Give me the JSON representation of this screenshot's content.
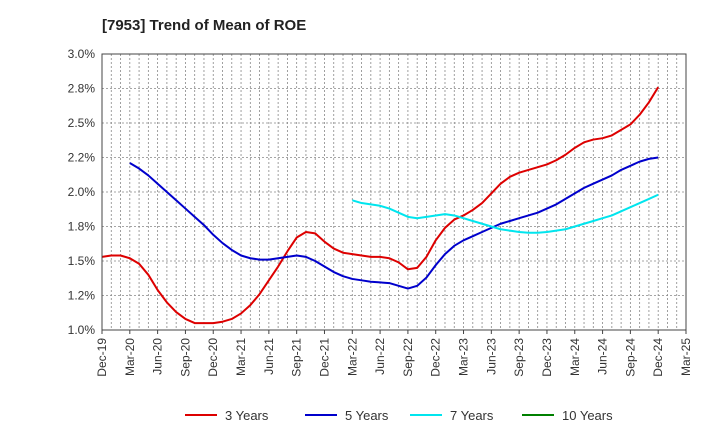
{
  "chart_data": {
    "type": "line",
    "title": "[7953]  Trend of Mean of ROE",
    "xlabel": "",
    "ylabel": "",
    "x_ticks": [
      "Dec-19",
      "Mar-20",
      "Jun-20",
      "Sep-20",
      "Dec-20",
      "Mar-21",
      "Jun-21",
      "Sep-21",
      "Dec-21",
      "Mar-22",
      "Jun-22",
      "Sep-22",
      "Dec-22",
      "Mar-23",
      "Jun-23",
      "Sep-23",
      "Dec-23",
      "Mar-24",
      "Jun-24",
      "Sep-24",
      "Dec-24",
      "Mar-25"
    ],
    "y_ticks": [
      "1.0%",
      "1.2%",
      "1.5%",
      "1.8%",
      "2.0%",
      "2.2%",
      "2.5%",
      "2.8%",
      "3.0%"
    ],
    "ylim": [
      1.0,
      3.0
    ],
    "grid": true,
    "legend_position": "bottom",
    "series": [
      {
        "name": "3 Years",
        "color": "#dd0000",
        "points": [
          [
            "Dec-19",
            1.53
          ],
          [
            "Jan-20",
            1.54
          ],
          [
            "Feb-20",
            1.54
          ],
          [
            "Mar-20",
            1.52
          ],
          [
            "Apr-20",
            1.48
          ],
          [
            "May-20",
            1.4
          ],
          [
            "Jun-20",
            1.29
          ],
          [
            "Jul-20",
            1.2
          ],
          [
            "Aug-20",
            1.13
          ],
          [
            "Sep-20",
            1.08
          ],
          [
            "Oct-20",
            1.05
          ],
          [
            "Nov-20",
            1.05
          ],
          [
            "Dec-20",
            1.05
          ],
          [
            "Jan-21",
            1.06
          ],
          [
            "Feb-21",
            1.08
          ],
          [
            "Mar-21",
            1.12
          ],
          [
            "Apr-21",
            1.18
          ],
          [
            "May-21",
            1.26
          ],
          [
            "Jun-21",
            1.36
          ],
          [
            "Jul-21",
            1.46
          ],
          [
            "Aug-21",
            1.57
          ],
          [
            "Sep-21",
            1.67
          ],
          [
            "Oct-21",
            1.71
          ],
          [
            "Nov-21",
            1.7
          ],
          [
            "Dec-21",
            1.64
          ],
          [
            "Jan-22",
            1.59
          ],
          [
            "Feb-22",
            1.56
          ],
          [
            "Mar-22",
            1.55
          ],
          [
            "Apr-22",
            1.54
          ],
          [
            "May-22",
            1.53
          ],
          [
            "Jun-22",
            1.53
          ],
          [
            "Jul-22",
            1.52
          ],
          [
            "Aug-22",
            1.49
          ],
          [
            "Sep-22",
            1.44
          ],
          [
            "Oct-22",
            1.45
          ],
          [
            "Nov-22",
            1.53
          ],
          [
            "Dec-22",
            1.65
          ],
          [
            "Jan-23",
            1.74
          ],
          [
            "Feb-23",
            1.8
          ],
          [
            "Mar-23",
            1.83
          ],
          [
            "Apr-23",
            1.87
          ],
          [
            "May-23",
            1.92
          ],
          [
            "Jun-23",
            1.99
          ],
          [
            "Jul-23",
            2.06
          ],
          [
            "Aug-23",
            2.11
          ],
          [
            "Sep-23",
            2.14
          ],
          [
            "Oct-23",
            2.16
          ],
          [
            "Nov-23",
            2.18
          ],
          [
            "Dec-23",
            2.2
          ],
          [
            "Jan-24",
            2.23
          ],
          [
            "Feb-24",
            2.27
          ],
          [
            "Mar-24",
            2.32
          ],
          [
            "Apr-24",
            2.36
          ],
          [
            "May-24",
            2.38
          ],
          [
            "Jun-24",
            2.39
          ],
          [
            "Jul-24",
            2.41
          ],
          [
            "Aug-24",
            2.45
          ],
          [
            "Sep-24",
            2.49
          ],
          [
            "Oct-24",
            2.56
          ],
          [
            "Nov-24",
            2.65
          ],
          [
            "Dec-24",
            2.76
          ]
        ]
      },
      {
        "name": "5 Years",
        "color": "#0000cc",
        "points": [
          [
            "Mar-20",
            2.21
          ],
          [
            "Apr-20",
            2.17
          ],
          [
            "May-20",
            2.12
          ],
          [
            "Jun-20",
            2.06
          ],
          [
            "Jul-20",
            2.0
          ],
          [
            "Aug-20",
            1.94
          ],
          [
            "Sep-20",
            1.88
          ],
          [
            "Oct-20",
            1.82
          ],
          [
            "Nov-20",
            1.76
          ],
          [
            "Dec-20",
            1.69
          ],
          [
            "Jan-21",
            1.63
          ],
          [
            "Feb-21",
            1.58
          ],
          [
            "Mar-21",
            1.54
          ],
          [
            "Apr-21",
            1.52
          ],
          [
            "May-21",
            1.51
          ],
          [
            "Jun-21",
            1.51
          ],
          [
            "Jul-21",
            1.52
          ],
          [
            "Aug-21",
            1.53
          ],
          [
            "Sep-21",
            1.54
          ],
          [
            "Oct-21",
            1.53
          ],
          [
            "Nov-21",
            1.5
          ],
          [
            "Dec-21",
            1.46
          ],
          [
            "Jan-22",
            1.42
          ],
          [
            "Feb-22",
            1.39
          ],
          [
            "Mar-22",
            1.37
          ],
          [
            "Apr-22",
            1.36
          ],
          [
            "May-22",
            1.35
          ],
          [
            "Jun-22",
            1.345
          ],
          [
            "Jul-22",
            1.34
          ],
          [
            "Aug-22",
            1.32
          ],
          [
            "Sep-22",
            1.3
          ],
          [
            "Oct-22",
            1.32
          ],
          [
            "Nov-22",
            1.38
          ],
          [
            "Dec-22",
            1.47
          ],
          [
            "Jan-23",
            1.55
          ],
          [
            "Feb-23",
            1.61
          ],
          [
            "Mar-23",
            1.65
          ],
          [
            "Apr-23",
            1.68
          ],
          [
            "May-23",
            1.71
          ],
          [
            "Jun-23",
            1.74
          ],
          [
            "Jul-23",
            1.77
          ],
          [
            "Aug-23",
            1.79
          ],
          [
            "Sep-23",
            1.81
          ],
          [
            "Oct-23",
            1.83
          ],
          [
            "Nov-23",
            1.85
          ],
          [
            "Dec-23",
            1.88
          ],
          [
            "Jan-24",
            1.91
          ],
          [
            "Feb-24",
            1.95
          ],
          [
            "Mar-24",
            1.99
          ],
          [
            "Apr-24",
            2.03
          ],
          [
            "May-24",
            2.06
          ],
          [
            "Jun-24",
            2.09
          ],
          [
            "Jul-24",
            2.12
          ],
          [
            "Aug-24",
            2.16
          ],
          [
            "Sep-24",
            2.19
          ],
          [
            "Oct-24",
            2.22
          ],
          [
            "Nov-24",
            2.24
          ],
          [
            "Dec-24",
            2.25
          ]
        ]
      },
      {
        "name": "7 Years",
        "color": "#00e5ee",
        "points": [
          [
            "Mar-22",
            1.94
          ],
          [
            "Apr-22",
            1.92
          ],
          [
            "May-22",
            1.91
          ],
          [
            "Jun-22",
            1.9
          ],
          [
            "Jul-22",
            1.88
          ],
          [
            "Aug-22",
            1.85
          ],
          [
            "Sep-22",
            1.82
          ],
          [
            "Oct-22",
            1.81
          ],
          [
            "Nov-22",
            1.82
          ],
          [
            "Dec-22",
            1.83
          ],
          [
            "Jan-23",
            1.84
          ],
          [
            "Feb-23",
            1.83
          ],
          [
            "Mar-23",
            1.81
          ],
          [
            "Apr-23",
            1.79
          ],
          [
            "May-23",
            1.77
          ],
          [
            "Jun-23",
            1.75
          ],
          [
            "Jul-23",
            1.73
          ],
          [
            "Aug-23",
            1.72
          ],
          [
            "Sep-23",
            1.71
          ],
          [
            "Oct-23",
            1.705
          ],
          [
            "Nov-23",
            1.705
          ],
          [
            "Dec-23",
            1.71
          ],
          [
            "Jan-24",
            1.72
          ],
          [
            "Feb-24",
            1.73
          ],
          [
            "Mar-24",
            1.75
          ],
          [
            "Apr-24",
            1.77
          ],
          [
            "May-24",
            1.79
          ],
          [
            "Jun-24",
            1.81
          ],
          [
            "Jul-24",
            1.83
          ],
          [
            "Aug-24",
            1.86
          ],
          [
            "Sep-24",
            1.89
          ],
          [
            "Oct-24",
            1.92
          ],
          [
            "Nov-24",
            1.95
          ],
          [
            "Dec-24",
            1.98
          ]
        ]
      },
      {
        "name": "10 Years",
        "color": "#008000",
        "points": []
      }
    ]
  }
}
